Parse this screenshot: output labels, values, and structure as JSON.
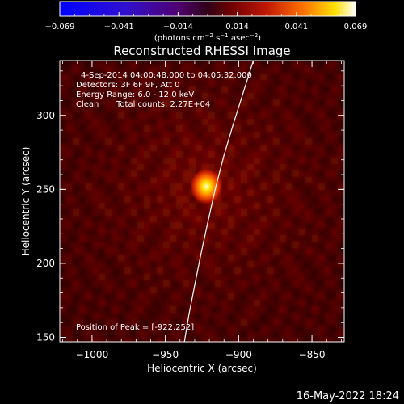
{
  "colorbar": {
    "ticks": [
      "−0.069",
      "−0.041",
      "−0.014",
      "0.014",
      "0.041",
      "0.069"
    ],
    "unit_main": "(photons cm",
    "unit_exp1": "−2",
    "unit_mid": " s",
    "unit_exp2": "−1",
    "unit_mid2": " asec",
    "unit_exp3": "−2",
    "unit_close": ")"
  },
  "chart_data": {
    "type": "heatmap",
    "title": "Reconstructed RHESSI Image",
    "xlabel": "Heliocentric X (arcsec)",
    "ylabel": "Heliocentric Y (arcsec)",
    "xlim": [
      -1022,
      -828
    ],
    "ylim": [
      147,
      337
    ],
    "x_ticks": [
      -1000,
      -950,
      -900,
      -850
    ],
    "x_tick_labels": [
      "−1000",
      "−950",
      "−900",
      "−850"
    ],
    "y_ticks": [
      150,
      200,
      250,
      300
    ],
    "y_tick_labels": [
      "150",
      "200",
      "250",
      "300"
    ],
    "value_range": [
      -0.069,
      0.069
    ],
    "peak": {
      "x": -922,
      "y": 252
    },
    "limb": [
      {
        "x": -937,
        "y": 147
      },
      {
        "x": -934,
        "y": 165
      },
      {
        "x": -930,
        "y": 185
      },
      {
        "x": -926,
        "y": 205
      },
      {
        "x": -921,
        "y": 228
      },
      {
        "x": -916,
        "y": 250
      },
      {
        "x": -910,
        "y": 273
      },
      {
        "x": -904,
        "y": 293
      },
      {
        "x": -897,
        "y": 315
      },
      {
        "x": -890,
        "y": 337
      }
    ],
    "annotations": {
      "time": "4-Sep-2014 04:00:48.000 to 04:05:32.000",
      "detectors": "Detectors: 3F 6F 9F, Att 0",
      "energy": "Energy Range: 6.0 - 12.0 keV",
      "method": "Clean",
      "counts": "Total counts: 2.27E+04",
      "peak_label": "Position of Peak = [-922,252]"
    }
  },
  "footer": {
    "date": "16-May-2022 18:24"
  }
}
